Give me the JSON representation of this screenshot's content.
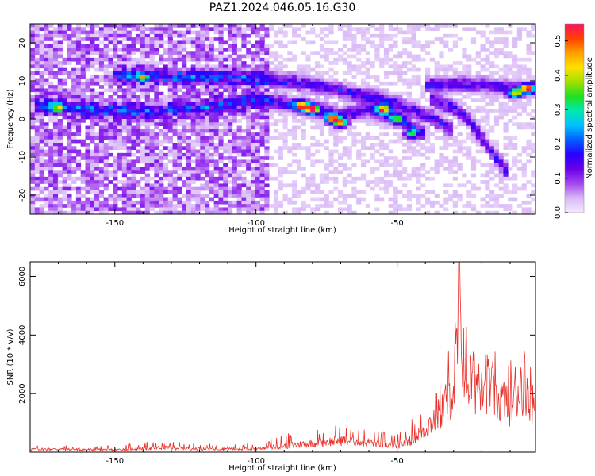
{
  "title": "PAZ1.2024.046.05.16.G30",
  "colors": {
    "background": "#ffffff",
    "axes": "#000000",
    "snr_line": "#e8312a"
  },
  "chart_data": [
    {
      "type": "heatmap",
      "xlabel": "Height of straight line (km)",
      "ylabel": "Frequency (Hz)",
      "xlim": [
        -180,
        -1
      ],
      "ylim": [
        -25,
        25
      ],
      "xticks": [
        -150,
        -100,
        -50
      ],
      "xtick_labels": [
        "-150",
        "-100",
        "-50"
      ],
      "yticks": [
        -20,
        -10,
        0,
        10,
        20
      ],
      "ytick_labels": [
        "-20",
        "-10",
        "0",
        "10",
        "20"
      ],
      "colorbar": {
        "label": "Normalized spectral amplitude",
        "range": [
          0,
          0.55
        ],
        "ticks": [
          0,
          0.1,
          0.2,
          0.3,
          0.4,
          0.5
        ],
        "tick_labels": [
          "0.0",
          "0.1",
          "0.2",
          "0.3",
          "0.4",
          "0.5"
        ],
        "colormap": [
          "#f4eafe",
          "#d9b8f6",
          "#a447ef",
          "#6a00e8",
          "#2a00ff",
          "#0060ff",
          "#00c0ff",
          "#00e8b0",
          "#20e020",
          "#a0e000",
          "#ffe000",
          "#ffa000",
          "#ff4000",
          "#ff1060"
        ]
      },
      "ridges": [
        {
          "x": [
            -178,
            -160,
            -140,
            -120,
            -100,
            -95,
            -80,
            -70,
            -60,
            -50,
            -45,
            -40
          ],
          "y": [
            3.5,
            2.5,
            2,
            3,
            5,
            4.5,
            3,
            1,
            2.5,
            0,
            -2,
            -4
          ]
        },
        {
          "x": [
            -150,
            -130,
            -110,
            -100,
            -90,
            -80,
            -60,
            -50,
            -40,
            -30
          ],
          "y": [
            11.5,
            11,
            11,
            10.5,
            10,
            9,
            6,
            4,
            1,
            -3
          ]
        },
        {
          "x": [
            -40,
            -30,
            -20,
            -10,
            -1
          ],
          "y": [
            9,
            9,
            9,
            8,
            8
          ]
        },
        {
          "x": [
            -38,
            -30,
            -25,
            -20,
            -15,
            -10
          ],
          "y": [
            5,
            3,
            0,
            -5,
            -10,
            -15
          ]
        }
      ],
      "peaks": [
        {
          "x": -84,
          "y": 3.5,
          "amp": 0.45
        },
        {
          "x": -80,
          "y": 2.5,
          "amp": 0.5
        },
        {
          "x": -73,
          "y": 0,
          "amp": 0.5
        },
        {
          "x": -70,
          "y": -1,
          "amp": 0.45
        },
        {
          "x": -55,
          "y": 2.5,
          "amp": 0.5
        },
        {
          "x": -50,
          "y": 0,
          "amp": 0.3
        },
        {
          "x": -45,
          "y": -4,
          "amp": 0.28
        },
        {
          "x": -4,
          "y": 8,
          "amp": 0.45
        },
        {
          "x": -8,
          "y": 6.5,
          "amp": 0.35
        },
        {
          "x": -140,
          "y": 11,
          "amp": 0.25
        },
        {
          "x": -170,
          "y": 3,
          "amp": 0.22
        }
      ]
    },
    {
      "type": "line",
      "xlabel": "Height of straight line (km)",
      "ylabel": "SNR (10 * v/v)",
      "xlim": [
        -180,
        -1
      ],
      "ylim": [
        0,
        6500
      ],
      "xticks": [
        -150,
        -100,
        -50
      ],
      "xtick_labels": [
        "-150",
        "-100",
        "-50"
      ],
      "yticks": [
        2000,
        4000,
        6000
      ],
      "ytick_labels": [
        "2000",
        "4000",
        "6000"
      ],
      "series": [
        {
          "x": [
            -180,
            -170,
            -160,
            -150,
            -140,
            -130,
            -120,
            -110,
            -100,
            -90,
            -80,
            -70,
            -60,
            -50,
            -45,
            -40,
            -35,
            -30,
            -28,
            -25,
            -22,
            -20,
            -15,
            -10,
            -5,
            -1
          ],
          "y": [
            150,
            150,
            130,
            120,
            200,
            230,
            180,
            170,
            180,
            320,
            450,
            600,
            500,
            300,
            650,
            1200,
            2000,
            3200,
            6500,
            3700,
            3500,
            4200,
            2700,
            2500,
            3700,
            2200
          ],
          "envelope_max": [
            250,
            250,
            220,
            220,
            350,
            380,
            320,
            300,
            330,
            650,
            800,
            1000,
            850,
            600,
            1100,
            1800,
            3000,
            4000,
            6500,
            4500,
            4300,
            4200,
            3400,
            3200,
            3900,
            3700
          ]
        }
      ]
    }
  ]
}
